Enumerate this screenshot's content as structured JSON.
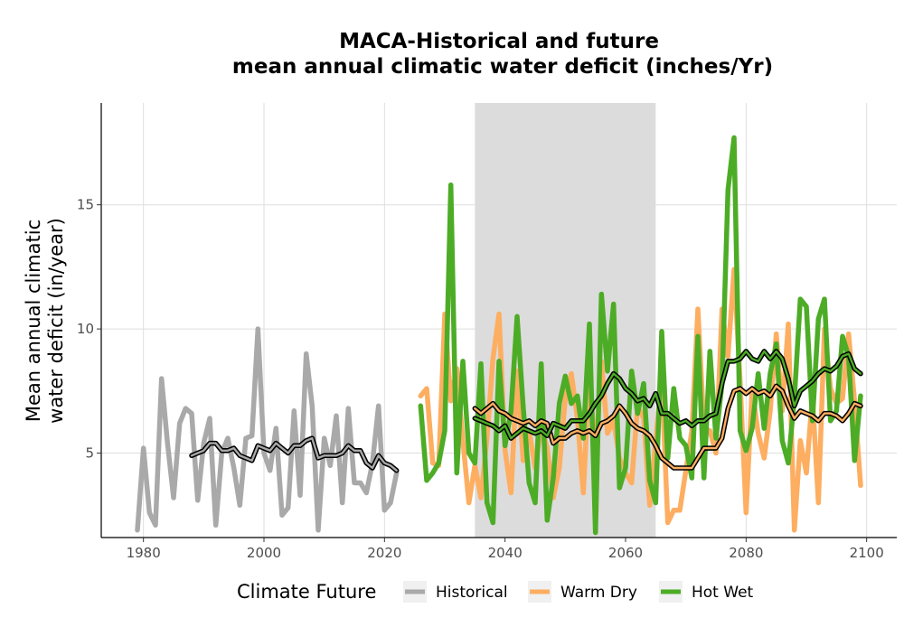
{
  "chart_data": {
    "type": "line",
    "title_line1": "MACA-Historical and future",
    "title_line2": "mean annual climatic water deficit (inches/Yr)",
    "ylabel_line1": "Mean annual climatic",
    "ylabel_line2": "water deficit (in/year)",
    "xlabel": "",
    "xlim": [
      1973,
      2105
    ],
    "ylim": [
      1.6,
      19.1
    ],
    "x_ticks": [
      1980,
      2000,
      2020,
      2040,
      2060,
      2080,
      2100
    ],
    "y_ticks": [
      5,
      10,
      15
    ],
    "grid": true,
    "shaded_period": [
      2035,
      2065
    ],
    "legend": {
      "position": "bottom",
      "title": "Climate Future",
      "entries": [
        {
          "label": "Historical",
          "color": "#a9a9a9"
        },
        {
          "label": "Warm Dry",
          "color": "#fdae61"
        },
        {
          "label": "Hot Wet",
          "color": "#4dac26"
        }
      ]
    },
    "series": [
      {
        "name": "Historical",
        "color": "#a9a9a9",
        "x": [
          1979,
          1980,
          1981,
          1982,
          1983,
          1984,
          1985,
          1986,
          1987,
          1988,
          1989,
          1990,
          1991,
          1992,
          1993,
          1994,
          1995,
          1996,
          1997,
          1998,
          1999,
          2000,
          2001,
          2002,
          2003,
          2004,
          2005,
          2006,
          2007,
          2008,
          2009,
          2010,
          2011,
          2012,
          2013,
          2014,
          2015,
          2016,
          2017,
          2018,
          2019,
          2020,
          2021,
          2022
        ],
        "y": [
          1.9,
          5.2,
          2.6,
          2.1,
          8.0,
          5.4,
          3.2,
          6.2,
          6.8,
          6.6,
          3.1,
          5.4,
          6.4,
          2.1,
          5.0,
          5.6,
          4.4,
          2.9,
          5.6,
          5.7,
          10.0,
          5.0,
          4.3,
          6.0,
          2.5,
          2.8,
          6.7,
          3.3,
          9.0,
          6.9,
          1.9,
          5.6,
          4.5,
          6.5,
          3.0,
          6.8,
          3.8,
          3.8,
          3.4,
          4.6,
          6.9,
          2.7,
          3.0,
          4.2
        ],
        "ma_x": [
          1988,
          1989,
          1990,
          1991,
          1992,
          1993,
          1994,
          1995,
          1996,
          1997,
          1998,
          1999,
          2000,
          2001,
          2002,
          2003,
          2004,
          2005,
          2006,
          2007,
          2008,
          2009,
          2010,
          2011,
          2012,
          2013,
          2014,
          2015,
          2016,
          2017,
          2018,
          2019,
          2020,
          2021,
          2022
        ],
        "ma_y": [
          4.9,
          5.0,
          5.1,
          5.4,
          5.4,
          5.1,
          5.1,
          5.2,
          4.9,
          4.8,
          4.7,
          5.3,
          5.2,
          5.1,
          5.4,
          5.2,
          5.0,
          5.3,
          5.3,
          5.5,
          5.6,
          4.8,
          4.9,
          4.9,
          4.9,
          5.0,
          5.3,
          5.1,
          5.1,
          4.6,
          4.4,
          4.9,
          4.6,
          4.5,
          4.3
        ]
      },
      {
        "name": "Warm Dry",
        "color": "#fdae61",
        "x": [
          2026,
          2027,
          2028,
          2029,
          2030,
          2031,
          2032,
          2033,
          2034,
          2035,
          2036,
          2037,
          2038,
          2039,
          2040,
          2041,
          2042,
          2043,
          2044,
          2045,
          2046,
          2047,
          2048,
          2049,
          2050,
          2051,
          2052,
          2053,
          2054,
          2055,
          2056,
          2057,
          2058,
          2059,
          2060,
          2061,
          2062,
          2063,
          2064,
          2065,
          2066,
          2067,
          2068,
          2069,
          2070,
          2071,
          2072,
          2073,
          2074,
          2075,
          2076,
          2077,
          2078,
          2079,
          2080,
          2081,
          2082,
          2083,
          2084,
          2085,
          2086,
          2087,
          2088,
          2089,
          2090,
          2091,
          2092,
          2093,
          2094,
          2095,
          2096,
          2097,
          2098,
          2099
        ],
        "y": [
          7.3,
          7.6,
          4.6,
          4.5,
          10.6,
          7.1,
          8.4,
          5.5,
          3.0,
          4.5,
          3.2,
          5.6,
          8.8,
          10.6,
          5.1,
          3.4,
          8.3,
          4.7,
          5.9,
          4.4,
          6.1,
          5.2,
          3.2,
          4.4,
          7.2,
          8.2,
          6.4,
          3.4,
          8.4,
          4.6,
          8.7,
          5.8,
          6.3,
          4.8,
          4.2,
          3.8,
          6.9,
          6.4,
          2.9,
          5.5,
          8.0,
          2.2,
          2.7,
          2.7,
          4.3,
          5.9,
          10.8,
          6.0,
          5.9,
          5.0,
          10.8,
          8.9,
          12.4,
          7.9,
          2.6,
          7.6,
          5.8,
          4.8,
          6.7,
          9.8,
          6.7,
          10.2,
          1.9,
          5.5,
          4.2,
          7.3,
          3.0,
          10.0,
          7.6,
          7.0,
          7.2,
          9.8,
          7.1,
          3.7
        ],
        "ma_x": [
          2035,
          2036,
          2037,
          2038,
          2039,
          2040,
          2041,
          2042,
          2043,
          2044,
          2045,
          2046,
          2047,
          2048,
          2049,
          2050,
          2051,
          2052,
          2053,
          2054,
          2055,
          2056,
          2057,
          2058,
          2059,
          2060,
          2061,
          2062,
          2063,
          2064,
          2065,
          2066,
          2067,
          2068,
          2069,
          2070,
          2071,
          2072,
          2073,
          2074,
          2075,
          2076,
          2077,
          2078,
          2079,
          2080,
          2081,
          2082,
          2083,
          2084,
          2085,
          2086,
          2087,
          2088,
          2089,
          2090,
          2091,
          2092,
          2093,
          2094,
          2095,
          2096,
          2097,
          2098,
          2099
        ],
        "ma_y": [
          6.8,
          6.6,
          6.8,
          7.0,
          6.7,
          6.6,
          6.4,
          6.3,
          6.2,
          6.3,
          6.1,
          6.3,
          6.2,
          5.4,
          5.6,
          5.6,
          5.8,
          5.9,
          5.8,
          5.9,
          5.7,
          6.2,
          6.3,
          6.5,
          6.9,
          6.6,
          6.2,
          6.0,
          5.9,
          5.7,
          5.3,
          4.8,
          4.6,
          4.4,
          4.4,
          4.4,
          4.4,
          4.8,
          5.2,
          5.2,
          5.2,
          5.6,
          6.8,
          7.5,
          7.6,
          7.4,
          7.6,
          7.4,
          7.5,
          7.3,
          7.7,
          7.5,
          6.9,
          6.4,
          6.7,
          6.6,
          6.5,
          6.3,
          6.6,
          6.6,
          6.5,
          6.3,
          6.6,
          7.0,
          6.9
        ]
      },
      {
        "name": "Hot Wet",
        "color": "#4dac26",
        "x": [
          2026,
          2027,
          2028,
          2029,
          2030,
          2031,
          2032,
          2033,
          2034,
          2035,
          2036,
          2037,
          2038,
          2039,
          2040,
          2041,
          2042,
          2043,
          2044,
          2045,
          2046,
          2047,
          2048,
          2049,
          2050,
          2051,
          2052,
          2053,
          2054,
          2055,
          2056,
          2057,
          2058,
          2059,
          2060,
          2061,
          2062,
          2063,
          2064,
          2065,
          2066,
          2067,
          2068,
          2069,
          2070,
          2071,
          2072,
          2073,
          2074,
          2075,
          2076,
          2077,
          2078,
          2079,
          2080,
          2081,
          2082,
          2083,
          2084,
          2085,
          2086,
          2087,
          2088,
          2089,
          2090,
          2091,
          2092,
          2093,
          2094,
          2095,
          2096,
          2097,
          2098,
          2099
        ],
        "y": [
          6.9,
          3.9,
          4.2,
          4.6,
          5.9,
          15.8,
          4.2,
          8.7,
          5.0,
          4.6,
          8.6,
          3.0,
          2.2,
          8.7,
          5.3,
          6.7,
          10.5,
          6.9,
          3.8,
          3.0,
          8.6,
          2.3,
          4.0,
          7.0,
          8.1,
          7.0,
          7.3,
          5.6,
          10.2,
          1.8,
          11.4,
          8.3,
          11.0,
          3.6,
          4.4,
          8.3,
          6.6,
          7.8,
          3.9,
          3.0,
          9.9,
          4.8,
          7.6,
          5.6,
          5.3,
          4.0,
          9.7,
          4.0,
          9.1,
          5.6,
          7.8,
          15.6,
          17.7,
          5.9,
          5.1,
          6.0,
          8.2,
          6.0,
          8.2,
          9.4,
          5.5,
          4.6,
          7.2,
          11.2,
          10.9,
          6.3,
          10.4,
          11.2,
          6.3,
          6.7,
          9.7,
          8.9,
          4.7,
          7.3
        ],
        "ma_x": [
          2035,
          2036,
          2037,
          2038,
          2039,
          2040,
          2041,
          2042,
          2043,
          2044,
          2045,
          2046,
          2047,
          2048,
          2049,
          2050,
          2051,
          2052,
          2053,
          2054,
          2055,
          2056,
          2057,
          2058,
          2059,
          2060,
          2061,
          2062,
          2063,
          2064,
          2065,
          2066,
          2067,
          2068,
          2069,
          2070,
          2071,
          2072,
          2073,
          2074,
          2075,
          2076,
          2077,
          2078,
          2079,
          2080,
          2081,
          2082,
          2083,
          2084,
          2085,
          2086,
          2087,
          2088,
          2089,
          2090,
          2091,
          2092,
          2093,
          2094,
          2095,
          2096,
          2097,
          2098,
          2099
        ],
        "ma_y": [
          6.4,
          6.3,
          6.2,
          6.1,
          5.9,
          6.1,
          5.6,
          5.8,
          6.0,
          5.9,
          5.8,
          5.9,
          5.7,
          6.2,
          6.1,
          6.0,
          6.3,
          6.3,
          6.3,
          6.6,
          7.0,
          7.3,
          7.8,
          8.2,
          8.0,
          7.6,
          7.4,
          7.1,
          7.2,
          6.9,
          7.4,
          6.6,
          6.6,
          6.4,
          6.2,
          6.3,
          6.1,
          6.3,
          6.3,
          6.5,
          6.6,
          7.8,
          8.7,
          8.7,
          8.8,
          9.1,
          8.8,
          8.7,
          9.1,
          8.8,
          9.1,
          8.8,
          8.0,
          6.9,
          7.5,
          7.7,
          7.9,
          8.2,
          8.4,
          8.3,
          8.5,
          8.9,
          9.0,
          8.4,
          8.2
        ]
      }
    ]
  }
}
